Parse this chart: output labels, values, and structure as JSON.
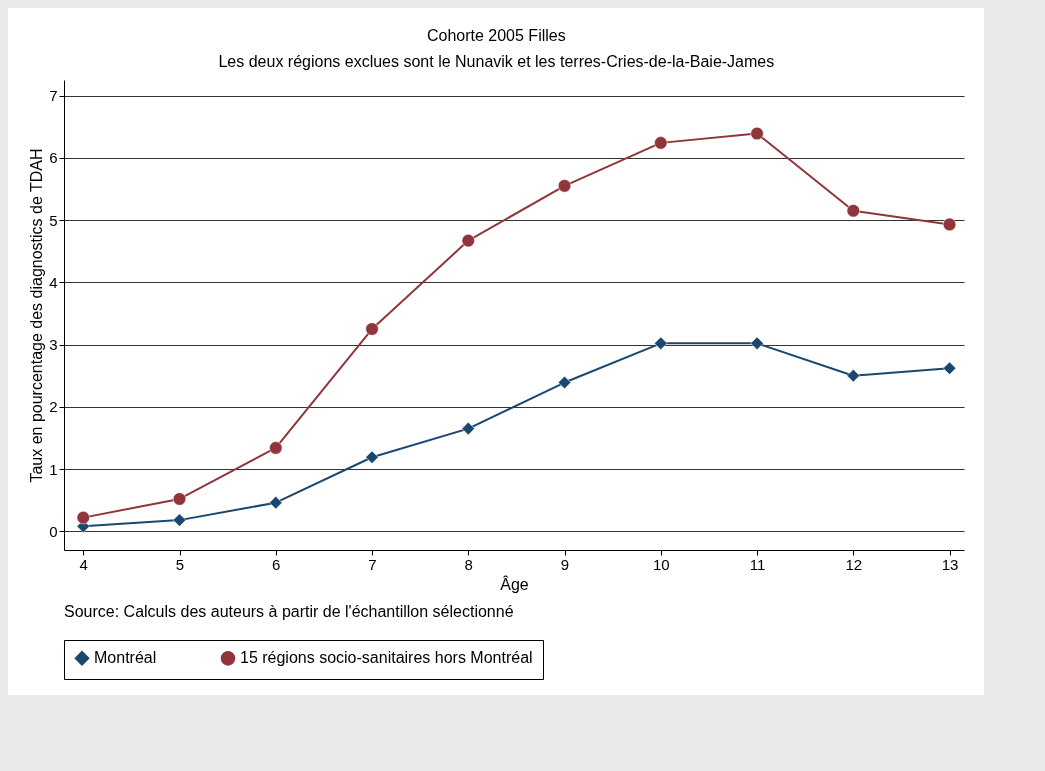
{
  "chart_data": {
    "type": "line",
    "title": "Cohorte 2005 Filles",
    "subtitle": "Les deux régions exclues sont le Nunavik et les terres-Cries-de-la-Baie-James",
    "xlabel": "Âge",
    "ylabel": "Taux en pourcentage des diagnostics de TDAH",
    "x": [
      4,
      5,
      6,
      7,
      8,
      9,
      10,
      11,
      12,
      13
    ],
    "series": [
      {
        "name": "Montréal",
        "color": "#1a476f",
        "marker": "diamond",
        "values": [
          0.08,
          0.18,
          0.46,
          1.19,
          1.65,
          2.39,
          3.02,
          3.02,
          2.5,
          2.62
        ]
      },
      {
        "name": "15 régions socio-sanitaires hors Montréal",
        "color": "#90353b",
        "marker": "circle",
        "values": [
          0.22,
          0.52,
          1.34,
          3.25,
          4.67,
          5.55,
          6.24,
          6.39,
          5.15,
          4.93
        ]
      }
    ],
    "xlim": [
      3.8,
      13.15
    ],
    "xticks": [
      4,
      5,
      6,
      7,
      8,
      9,
      10,
      11,
      12,
      13
    ],
    "ylim": [
      -0.3,
      7.25
    ],
    "yticks": [
      0,
      1,
      2,
      3,
      4,
      5,
      6,
      7
    ],
    "grid": "y",
    "legend": "bottom",
    "line_style": "solid",
    "annotations": [
      "Source: Calculs des auteurs à partir de l'échantillon sélectionné"
    ]
  }
}
